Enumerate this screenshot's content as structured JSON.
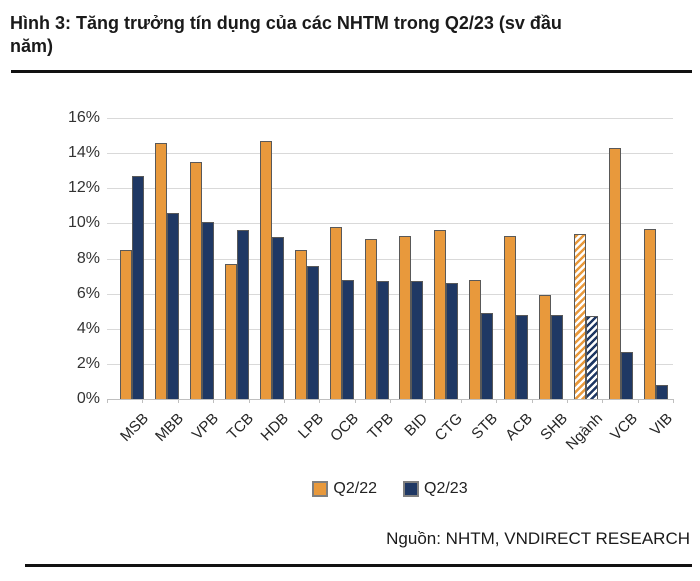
{
  "header": {
    "title_line1": "Hình 3: Tăng trưởng tín dụng của các NHTM trong Q2/23 (sv đầu",
    "title_line2": "năm)"
  },
  "footer": {
    "source": "Nguồn: NHTM, VNDIRECT RESEARCH"
  },
  "colors": {
    "q2_22_orange": "#E8993C",
    "q2_23_navy": "#1F3864",
    "bar_border": "#595959",
    "gridline": "#D9D9D9",
    "axis_line": "#BFBFBF",
    "rule_black": "#111111"
  },
  "chart_data": {
    "type": "bar",
    "categories": [
      "MSB",
      "MBB",
      "VPB",
      "TCB",
      "HDB",
      "LPB",
      "OCB",
      "TPB",
      "BID",
      "CTG",
      "STB",
      "ACB",
      "SHB",
      "Ngành",
      "VCB",
      "VIB"
    ],
    "series": [
      {
        "name": "Q2/22",
        "color": "#E8993C",
        "values": [
          8.5,
          14.6,
          13.5,
          7.7,
          14.7,
          8.5,
          9.8,
          9.1,
          9.3,
          9.6,
          6.8,
          9.3,
          5.9,
          9.4,
          14.3,
          9.7
        ]
      },
      {
        "name": "Q2/23",
        "color": "#1F3864",
        "values": [
          12.7,
          10.6,
          10.1,
          9.6,
          9.2,
          7.6,
          6.8,
          6.7,
          6.7,
          6.6,
          4.9,
          4.8,
          4.8,
          4.7,
          2.7,
          0.8
        ]
      }
    ],
    "hatched_categories": [
      "Ngành"
    ],
    "ylim": [
      0,
      16
    ],
    "yticks": [
      "16%",
      "14%",
      "12%",
      "10%",
      "8%",
      "6%",
      "4%",
      "2%",
      "0%"
    ],
    "grid": true,
    "legend_position": "bottom"
  }
}
